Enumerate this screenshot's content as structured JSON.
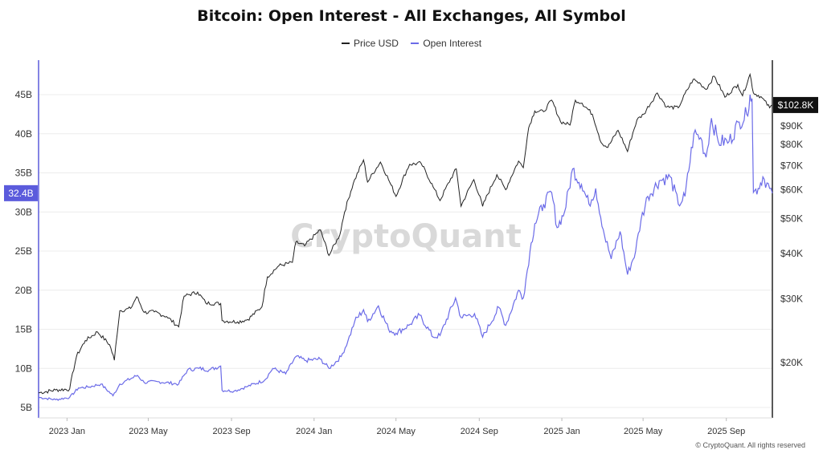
{
  "chart_data": {
    "type": "line",
    "title": "Bitcoin: Open Interest - All Exchanges, All Symbol",
    "watermark": "CryptoQuant",
    "copyright": "© CryptoQuant. All rights reserved",
    "x_ticks": [
      "2023 Jan",
      "2023 May",
      "2023 Sep",
      "2024 Jan",
      "2024 May",
      "2024 Sep",
      "2025 Jan",
      "2025 May",
      "2025 Sep"
    ],
    "left_axis": {
      "ticks": [
        "5B",
        "10B",
        "15B",
        "20B",
        "25B",
        "30B",
        "35B",
        "40B",
        "45B"
      ],
      "current_label": "32.4B",
      "color": "#5b5bdc"
    },
    "right_axis": {
      "scale": "log",
      "ticks": [
        "$20K",
        "$30K",
        "$40K",
        "$50K",
        "$60K",
        "$70K",
        "$80K",
        "$90K"
      ],
      "current_label": "$102.8K"
    },
    "grid": "horizontal",
    "legend_placement": "top-center",
    "series": [
      {
        "name": "Price USD",
        "color": "#222222",
        "axis": "right",
        "points": [
          [
            "2022-11-20",
            16.5
          ],
          [
            "2022-12-15",
            16.8
          ],
          [
            "2023-01-05",
            16.9
          ],
          [
            "2023-01-15",
            20.8
          ],
          [
            "2023-01-28",
            23.0
          ],
          [
            "2023-02-15",
            24.3
          ],
          [
            "2023-03-05",
            22.4
          ],
          [
            "2023-03-12",
            20.3
          ],
          [
            "2023-03-20",
            27.8
          ],
          [
            "2023-04-05",
            28.2
          ],
          [
            "2023-04-14",
            30.4
          ],
          [
            "2023-04-25",
            27.5
          ],
          [
            "2023-05-10",
            27.6
          ],
          [
            "2023-05-28",
            26.8
          ],
          [
            "2023-06-15",
            25.1
          ],
          [
            "2023-06-23",
            30.5
          ],
          [
            "2023-07-13",
            31.3
          ],
          [
            "2023-07-25",
            29.2
          ],
          [
            "2023-08-16",
            29.1
          ],
          [
            "2023-08-18",
            26.1
          ],
          [
            "2023-09-10",
            25.9
          ],
          [
            "2023-09-25",
            26.3
          ],
          [
            "2023-10-16",
            28.5
          ],
          [
            "2023-10-24",
            34.5
          ],
          [
            "2023-11-10",
            37.0
          ],
          [
            "2023-11-30",
            37.8
          ],
          [
            "2023-12-05",
            43.0
          ],
          [
            "2023-12-18",
            42.0
          ],
          [
            "2024-01-10",
            46.5
          ],
          [
            "2024-01-23",
            39.5
          ],
          [
            "2024-02-08",
            45.0
          ],
          [
            "2024-02-15",
            52.0
          ],
          [
            "2024-02-28",
            62.5
          ],
          [
            "2024-03-14",
            72.5
          ],
          [
            "2024-03-20",
            63.0
          ],
          [
            "2024-04-08",
            71.5
          ],
          [
            "2024-04-20",
            64.0
          ],
          [
            "2024-05-01",
            57.5
          ],
          [
            "2024-05-21",
            70.5
          ],
          [
            "2024-06-07",
            71.0
          ],
          [
            "2024-06-25",
            61.0
          ],
          [
            "2024-07-05",
            56.0
          ],
          [
            "2024-07-29",
            68.5
          ],
          [
            "2024-08-05",
            54.0
          ],
          [
            "2024-08-24",
            64.0
          ],
          [
            "2024-09-06",
            54.0
          ],
          [
            "2024-09-27",
            66.0
          ],
          [
            "2024-10-10",
            60.0
          ],
          [
            "2024-10-29",
            72.0
          ],
          [
            "2024-11-05",
            69.0
          ],
          [
            "2024-11-13",
            89.0
          ],
          [
            "2024-11-22",
            99.0
          ],
          [
            "2024-12-05",
            98.5
          ],
          [
            "2024-12-17",
            106.0
          ],
          [
            "2024-12-30",
            92.5
          ],
          [
            "2025-01-13",
            90.5
          ],
          [
            "2025-01-21",
            106.0
          ],
          [
            "2025-01-31",
            104.0
          ],
          [
            "2025-02-15",
            97.0
          ],
          [
            "2025-02-28",
            81.0
          ],
          [
            "2025-03-10",
            78.5
          ],
          [
            "2025-03-25",
            87.5
          ],
          [
            "2025-04-08",
            76.5
          ],
          [
            "2025-04-22",
            93.5
          ],
          [
            "2025-05-02",
            97.0
          ],
          [
            "2025-05-22",
            111.0
          ],
          [
            "2025-06-05",
            101.5
          ],
          [
            "2025-06-22",
            101.0
          ],
          [
            "2025-07-14",
            121.0
          ],
          [
            "2025-07-25",
            117.5
          ],
          [
            "2025-08-02",
            113.5
          ],
          [
            "2025-08-14",
            123.5
          ],
          [
            "2025-08-30",
            108.0
          ],
          [
            "2025-09-18",
            117.0
          ],
          [
            "2025-09-25",
            109.0
          ],
          [
            "2025-10-06",
            125.0
          ],
          [
            "2025-10-11",
            111.0
          ],
          [
            "2025-10-22",
            108.5
          ],
          [
            "2025-11-04",
            101.0
          ],
          [
            "2025-11-08",
            102.8
          ]
        ]
      },
      {
        "name": "Open Interest",
        "color": "#6b6be8",
        "axis": "left",
        "points": [
          [
            "2022-11-20",
            6.3
          ],
          [
            "2022-12-15",
            6.0
          ],
          [
            "2023-01-05",
            6.3
          ],
          [
            "2023-01-18",
            7.5
          ],
          [
            "2023-02-01",
            7.6
          ],
          [
            "2023-02-20",
            8.0
          ],
          [
            "2023-03-10",
            6.5
          ],
          [
            "2023-03-20",
            8.0
          ],
          [
            "2023-04-15",
            9.1
          ],
          [
            "2023-04-25",
            8.2
          ],
          [
            "2023-05-15",
            8.3
          ],
          [
            "2023-06-15",
            8.0
          ],
          [
            "2023-06-28",
            9.8
          ],
          [
            "2023-07-15",
            10.0
          ],
          [
            "2023-07-30",
            9.8
          ],
          [
            "2023-08-16",
            10.3
          ],
          [
            "2023-08-18",
            7.2
          ],
          [
            "2023-09-05",
            7.1
          ],
          [
            "2023-09-25",
            7.7
          ],
          [
            "2023-10-20",
            8.5
          ],
          [
            "2023-11-01",
            10.0
          ],
          [
            "2023-11-20",
            9.3
          ],
          [
            "2023-12-05",
            11.5
          ],
          [
            "2023-12-20",
            11.0
          ],
          [
            "2024-01-10",
            11.2
          ],
          [
            "2024-01-23",
            10.0
          ],
          [
            "2024-02-10",
            11.5
          ],
          [
            "2024-02-20",
            13.5
          ],
          [
            "2024-03-01",
            16.0
          ],
          [
            "2024-03-14",
            17.5
          ],
          [
            "2024-03-20",
            16.0
          ],
          [
            "2024-04-05",
            18.0
          ],
          [
            "2024-04-20",
            15.0
          ],
          [
            "2024-05-01",
            14.5
          ],
          [
            "2024-05-20",
            15.5
          ],
          [
            "2024-06-05",
            16.8
          ],
          [
            "2024-06-25",
            14.0
          ],
          [
            "2024-07-05",
            14.2
          ],
          [
            "2024-07-28",
            19.0
          ],
          [
            "2024-08-05",
            16.5
          ],
          [
            "2024-08-25",
            17.0
          ],
          [
            "2024-09-06",
            14.0
          ],
          [
            "2024-09-30",
            17.8
          ],
          [
            "2024-10-10",
            15.5
          ],
          [
            "2024-10-29",
            20.0
          ],
          [
            "2024-11-05",
            19.0
          ],
          [
            "2024-11-15",
            25.0
          ],
          [
            "2024-11-22",
            28.5
          ],
          [
            "2024-12-05",
            31.0
          ],
          [
            "2024-12-17",
            32.5
          ],
          [
            "2024-12-25",
            28.0
          ],
          [
            "2025-01-05",
            30.0
          ],
          [
            "2025-01-17",
            35.5
          ],
          [
            "2025-01-30",
            33.5
          ],
          [
            "2025-02-10",
            31.0
          ],
          [
            "2025-02-20",
            33.0
          ],
          [
            "2025-03-05",
            27.0
          ],
          [
            "2025-03-15",
            24.0
          ],
          [
            "2025-03-28",
            27.5
          ],
          [
            "2025-04-08",
            22.0
          ],
          [
            "2025-04-20",
            25.0
          ],
          [
            "2025-04-28",
            29.0
          ],
          [
            "2025-05-08",
            32.0
          ],
          [
            "2025-05-25",
            34.0
          ],
          [
            "2025-06-10",
            34.5
          ],
          [
            "2025-06-22",
            31.0
          ],
          [
            "2025-07-02",
            32.0
          ],
          [
            "2025-07-15",
            40.0
          ],
          [
            "2025-07-25",
            39.5
          ],
          [
            "2025-08-02",
            37.0
          ],
          [
            "2025-08-10",
            42.0
          ],
          [
            "2025-08-20",
            39.0
          ],
          [
            "2025-09-05",
            39.0
          ],
          [
            "2025-09-20",
            41.5
          ],
          [
            "2025-10-01",
            42.5
          ],
          [
            "2025-10-06",
            45.0
          ],
          [
            "2025-10-09",
            44.5
          ],
          [
            "2025-10-11",
            32.5
          ],
          [
            "2025-10-18",
            33.0
          ],
          [
            "2025-10-25",
            34.5
          ],
          [
            "2025-11-04",
            33.0
          ],
          [
            "2025-11-08",
            32.4
          ]
        ]
      }
    ]
  }
}
